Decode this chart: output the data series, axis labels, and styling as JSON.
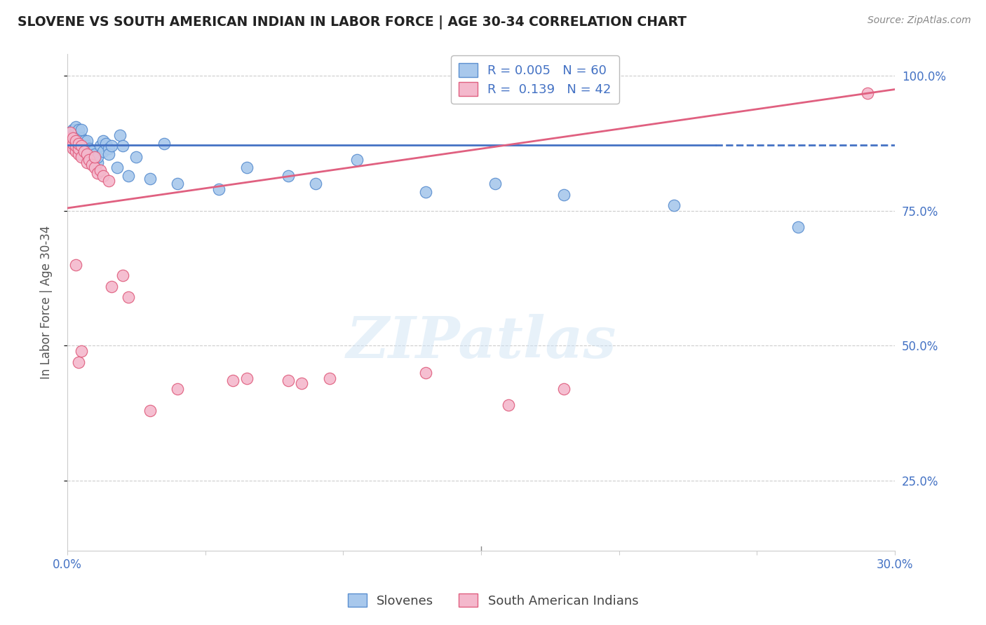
{
  "title": "SLOVENE VS SOUTH AMERICAN INDIAN IN LABOR FORCE | AGE 30-34 CORRELATION CHART",
  "source": "Source: ZipAtlas.com",
  "ylabel": "In Labor Force | Age 30-34",
  "xlim": [
    0.0,
    0.3
  ],
  "ylim": [
    0.12,
    1.04
  ],
  "xtick_positions": [
    0.0,
    0.05,
    0.1,
    0.15,
    0.2,
    0.25,
    0.3
  ],
  "xtick_labels": [
    "0.0%",
    "",
    "",
    "",
    "",
    "",
    "30.0%"
  ],
  "ytick_positions": [
    0.25,
    0.5,
    0.75,
    1.0
  ],
  "ytick_labels": [
    "25.0%",
    "50.0%",
    "75.0%",
    "100.0%"
  ],
  "blue_color": "#A8C8EC",
  "pink_color": "#F4B8CC",
  "blue_edge_color": "#5B8FD0",
  "pink_edge_color": "#E06080",
  "blue_line_color": "#4472C4",
  "pink_line_color": "#E06080",
  "R_blue": 0.005,
  "N_blue": 60,
  "R_pink": 0.139,
  "N_pink": 42,
  "legend_label_blue": "Slovenes",
  "legend_label_pink": "South American Indians",
  "watermark_text": "ZIPatlas",
  "axis_label_color": "#4472C4",
  "grid_color": "#CCCCCC",
  "blue_line_flat_y": 0.872,
  "blue_line_x_solid_end": 0.235,
  "pink_line_x0": 0.0,
  "pink_line_y0": 0.755,
  "pink_line_x1": 0.3,
  "pink_line_y1": 0.975,
  "blue_dots_x": [
    0.001,
    0.001,
    0.001,
    0.002,
    0.002,
    0.002,
    0.002,
    0.003,
    0.003,
    0.003,
    0.003,
    0.003,
    0.004,
    0.004,
    0.004,
    0.004,
    0.004,
    0.005,
    0.005,
    0.005,
    0.005,
    0.005,
    0.006,
    0.006,
    0.007,
    0.007,
    0.007,
    0.008,
    0.008,
    0.009,
    0.009,
    0.01,
    0.01,
    0.011,
    0.011,
    0.012,
    0.013,
    0.013,
    0.014,
    0.015,
    0.015,
    0.016,
    0.018,
    0.019,
    0.02,
    0.022,
    0.025,
    0.03,
    0.035,
    0.04,
    0.055,
    0.065,
    0.08,
    0.09,
    0.105,
    0.13,
    0.155,
    0.18,
    0.22,
    0.265
  ],
  "blue_dots_y": [
    0.875,
    0.885,
    0.895,
    0.87,
    0.88,
    0.89,
    0.9,
    0.865,
    0.875,
    0.885,
    0.895,
    0.905,
    0.86,
    0.87,
    0.88,
    0.89,
    0.9,
    0.855,
    0.865,
    0.875,
    0.885,
    0.9,
    0.87,
    0.88,
    0.86,
    0.87,
    0.88,
    0.855,
    0.865,
    0.85,
    0.86,
    0.845,
    0.855,
    0.84,
    0.85,
    0.87,
    0.88,
    0.86,
    0.875,
    0.865,
    0.855,
    0.87,
    0.83,
    0.89,
    0.87,
    0.815,
    0.85,
    0.81,
    0.875,
    0.8,
    0.79,
    0.83,
    0.815,
    0.8,
    0.845,
    0.785,
    0.8,
    0.78,
    0.76,
    0.72
  ],
  "pink_dots_x": [
    0.001,
    0.001,
    0.001,
    0.002,
    0.002,
    0.002,
    0.003,
    0.003,
    0.003,
    0.004,
    0.004,
    0.004,
    0.005,
    0.005,
    0.006,
    0.007,
    0.007,
    0.008,
    0.009,
    0.01,
    0.011,
    0.012,
    0.013,
    0.015,
    0.016,
    0.02,
    0.022,
    0.03,
    0.04,
    0.06,
    0.065,
    0.08,
    0.085,
    0.095,
    0.13,
    0.16,
    0.18,
    0.003,
    0.004,
    0.005,
    0.01,
    0.29
  ],
  "pink_dots_y": [
    0.875,
    0.885,
    0.895,
    0.865,
    0.875,
    0.885,
    0.86,
    0.87,
    0.88,
    0.855,
    0.865,
    0.875,
    0.85,
    0.87,
    0.86,
    0.855,
    0.84,
    0.845,
    0.835,
    0.83,
    0.82,
    0.825,
    0.815,
    0.805,
    0.61,
    0.63,
    0.59,
    0.38,
    0.42,
    0.435,
    0.44,
    0.435,
    0.43,
    0.44,
    0.45,
    0.39,
    0.42,
    0.65,
    0.47,
    0.49,
    0.85,
    0.968
  ]
}
